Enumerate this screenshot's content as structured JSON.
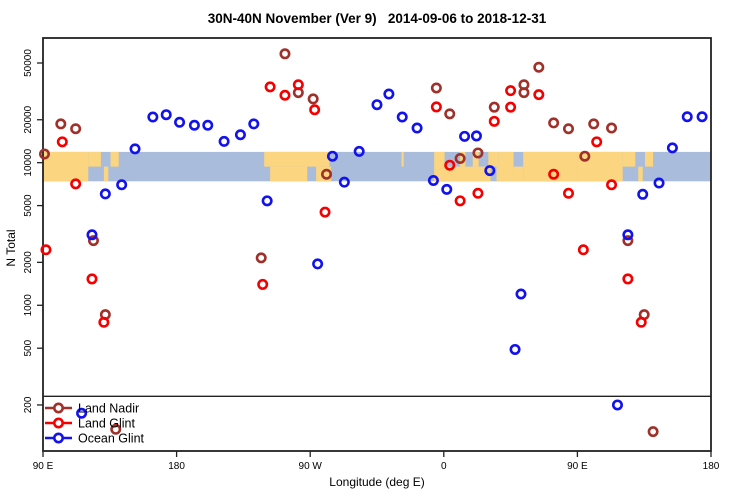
{
  "window": {
    "title": "30N-40N November (Ver 9)   2014-09-06 to 2018-12-31"
  },
  "chart_data": {
    "type": "scatter",
    "title": "30N-40N November (Ver 9)   2014-09-06 to 2018-12-31",
    "xlabel": "Longitude (deg E)",
    "ylabel": "N Total",
    "x_axis": {
      "min": 90,
      "max": 540,
      "ticks": [
        {
          "value": 90,
          "label": "90 E"
        },
        {
          "value": 180,
          "label": "180"
        },
        {
          "value": 270,
          "label": "90 W"
        },
        {
          "value": 360,
          "label": "0"
        },
        {
          "value": 450,
          "label": "90 E"
        },
        {
          "value": 540,
          "label": "180"
        }
      ]
    },
    "y_axis": {
      "scale": "log",
      "min": 95,
      "max": 72000,
      "ticks": [
        {
          "value": 200,
          "label": "200"
        },
        {
          "value": 500,
          "label": "500"
        },
        {
          "value": 1000,
          "label": "1000"
        },
        {
          "value": 2000,
          "label": "2000"
        },
        {
          "value": 5000,
          "label": "5000"
        },
        {
          "value": 10000,
          "label": "10000"
        },
        {
          "value": 20000,
          "label": "20000"
        },
        {
          "value": 50000,
          "label": "50000"
        }
      ]
    },
    "threshold_line": {
      "value": 230
    },
    "map_band": {
      "description": "30N-40N world-map strip, ocean vs land",
      "top_value": 11900,
      "bottom_value": 7400,
      "land_segments": [
        {
          "from": 90,
          "to": 120.5,
          "row": "full"
        },
        {
          "from": 120.5,
          "to": 129,
          "row": "top"
        },
        {
          "from": 131,
          "to": 134,
          "row": "bottom"
        },
        {
          "from": 135.5,
          "to": 141,
          "row": "top"
        },
        {
          "from": 239,
          "to": 283,
          "row": "top"
        },
        {
          "from": 243,
          "to": 268,
          "row": "bottom"
        },
        {
          "from": 274,
          "to": 284,
          "row": "bottom"
        },
        {
          "from": 331.5,
          "to": 333,
          "row": "top"
        },
        {
          "from": 353.5,
          "to": 360.5,
          "row": "full"
        },
        {
          "from": 360.5,
          "to": 391.5,
          "row": "bottom"
        },
        {
          "from": 395.5,
          "to": 397,
          "row": "bottom"
        },
        {
          "from": 371,
          "to": 374.5,
          "row": "top"
        },
        {
          "from": 379.5,
          "to": 383.5,
          "row": "top"
        },
        {
          "from": 390,
          "to": 397,
          "row": "top"
        },
        {
          "from": 397,
          "to": 407,
          "row": "full"
        },
        {
          "from": 407,
          "to": 413.5,
          "row": "bottom"
        },
        {
          "from": 413.5,
          "to": 450,
          "row": "full"
        },
        {
          "from": 450,
          "to": 480.5,
          "row": "full"
        },
        {
          "from": 480.5,
          "to": 489,
          "row": "top"
        },
        {
          "from": 491,
          "to": 494,
          "row": "bottom"
        },
        {
          "from": 495.5,
          "to": 501,
          "row": "top"
        }
      ]
    },
    "series": [
      {
        "name": "Land Nadir",
        "color": "#A0302A",
        "points": [
          [
            91,
            11500
          ],
          [
            102,
            18700
          ],
          [
            112,
            17300
          ],
          [
            124,
            2840
          ],
          [
            132,
            860
          ],
          [
            139,
            135
          ],
          [
            237,
            2150
          ],
          [
            253,
            58000
          ],
          [
            262,
            31000
          ],
          [
            272,
            28000
          ],
          [
            281,
            8300
          ],
          [
            355,
            33400
          ],
          [
            364,
            22000
          ],
          [
            371,
            10700
          ],
          [
            383,
            11700
          ],
          [
            394,
            24500
          ],
          [
            414,
            35200
          ],
          [
            414,
            31000
          ],
          [
            424,
            46700
          ],
          [
            434,
            19000
          ],
          [
            444,
            17300
          ],
          [
            455,
            11100
          ],
          [
            461,
            18700
          ],
          [
            473,
            17500
          ],
          [
            484,
            2840
          ],
          [
            495,
            860
          ],
          [
            501,
            130
          ]
        ]
      },
      {
        "name": "Land Glint",
        "color": "#F50000",
        "points": [
          [
            92,
            2450
          ],
          [
            103,
            14000
          ],
          [
            112,
            7100
          ],
          [
            123,
            1530
          ],
          [
            131,
            760
          ],
          [
            238,
            1400
          ],
          [
            243,
            34000
          ],
          [
            253,
            29700
          ],
          [
            262,
            35200
          ],
          [
            273,
            23500
          ],
          [
            280,
            4500
          ],
          [
            355,
            24600
          ],
          [
            364,
            9600
          ],
          [
            371,
            5400
          ],
          [
            383,
            6100
          ],
          [
            394,
            19500
          ],
          [
            405,
            32000
          ],
          [
            405,
            24500
          ],
          [
            424,
            30000
          ],
          [
            434,
            8300
          ],
          [
            444,
            6100
          ],
          [
            454,
            2450
          ],
          [
            463,
            14000
          ],
          [
            473,
            7000
          ],
          [
            484,
            1530
          ],
          [
            493,
            760
          ]
        ]
      },
      {
        "name": "Ocean Glint",
        "color": "#1212EE",
        "points": [
          [
            116,
            175
          ],
          [
            123,
            3120
          ],
          [
            132,
            6040
          ],
          [
            143,
            7000
          ],
          [
            152,
            12500
          ],
          [
            164,
            20900
          ],
          [
            173,
            21700
          ],
          [
            182,
            19200
          ],
          [
            192,
            18300
          ],
          [
            201,
            18300
          ],
          [
            212,
            14100
          ],
          [
            223,
            15700
          ],
          [
            232,
            18700
          ],
          [
            241,
            5400
          ],
          [
            275,
            1950
          ],
          [
            285,
            11100
          ],
          [
            293,
            7300
          ],
          [
            303,
            12000
          ],
          [
            315,
            25500
          ],
          [
            323,
            30300
          ],
          [
            332,
            20900
          ],
          [
            342,
            17500
          ],
          [
            353,
            7500
          ],
          [
            362,
            6500
          ],
          [
            374,
            15300
          ],
          [
            382,
            15400
          ],
          [
            391,
            8800
          ],
          [
            408,
            490
          ],
          [
            412,
            1200
          ],
          [
            477,
            200
          ],
          [
            484,
            3120
          ],
          [
            494,
            6000
          ],
          [
            505,
            7200
          ],
          [
            514,
            12700
          ],
          [
            524,
            21000
          ],
          [
            534,
            21000
          ]
        ]
      }
    ],
    "legend": {
      "position": "bottom-left",
      "entries": [
        {
          "label": "Land Nadir"
        },
        {
          "label": "Land Glint"
        },
        {
          "label": "Ocean Glint"
        }
      ]
    },
    "colors": {
      "land": "#FBD57F",
      "ocean": "#A9BCDB",
      "axis": "#333333"
    }
  }
}
